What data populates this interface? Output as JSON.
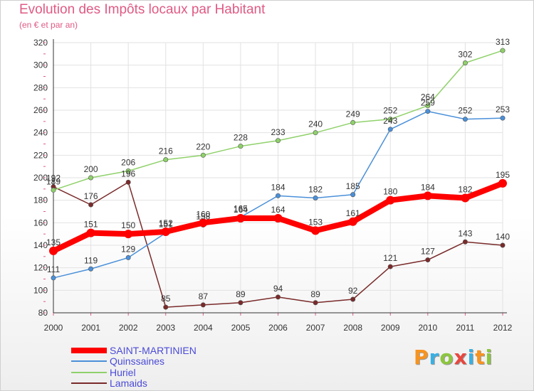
{
  "header": {
    "title": "Evolution des Impôts locaux par Habitant",
    "subtitle": "(en € et par an)"
  },
  "logo": {
    "text": "Proxiti",
    "colors": [
      "#f7931e",
      "#3ab0e2",
      "#8cc63f",
      "#e8473f",
      "#3ab0e2",
      "#f7931e",
      "#8cc63f"
    ]
  },
  "chart_data": {
    "type": "line",
    "title": "Evolution des Impôts locaux par Habitant",
    "subtitle": "(en € et par an)",
    "x": [
      2000,
      2001,
      2002,
      2003,
      2004,
      2005,
      2006,
      2007,
      2008,
      2009,
      2010,
      2011,
      2012
    ],
    "ylim": [
      80,
      320
    ],
    "yticks": [
      80,
      100,
      120,
      140,
      160,
      180,
      200,
      220,
      240,
      260,
      280,
      300,
      320
    ],
    "grid": true,
    "legend_position": "bottom-left",
    "series": [
      {
        "name": "SAINT-MARTINIEN",
        "color": "#ff0000",
        "values": [
          135,
          151,
          150,
          152,
          160,
          164,
          164,
          153,
          161,
          180,
          184,
          182,
          195
        ]
      },
      {
        "name": "Quinssaines",
        "color": "#4a90d9",
        "values": [
          111,
          119,
          129,
          151,
          158,
          165,
          184,
          182,
          185,
          243,
          259,
          252,
          253
        ]
      },
      {
        "name": "Huriel",
        "color": "#8fd16a",
        "values": [
          189,
          200,
          206,
          216,
          220,
          228,
          233,
          240,
          249,
          252,
          264,
          302,
          313
        ]
      },
      {
        "name": "Lamaids",
        "color": "#7a2a2a",
        "values": [
          192,
          176,
          196,
          85,
          87,
          89,
          94,
          89,
          92,
          121,
          127,
          143,
          140
        ]
      }
    ]
  }
}
